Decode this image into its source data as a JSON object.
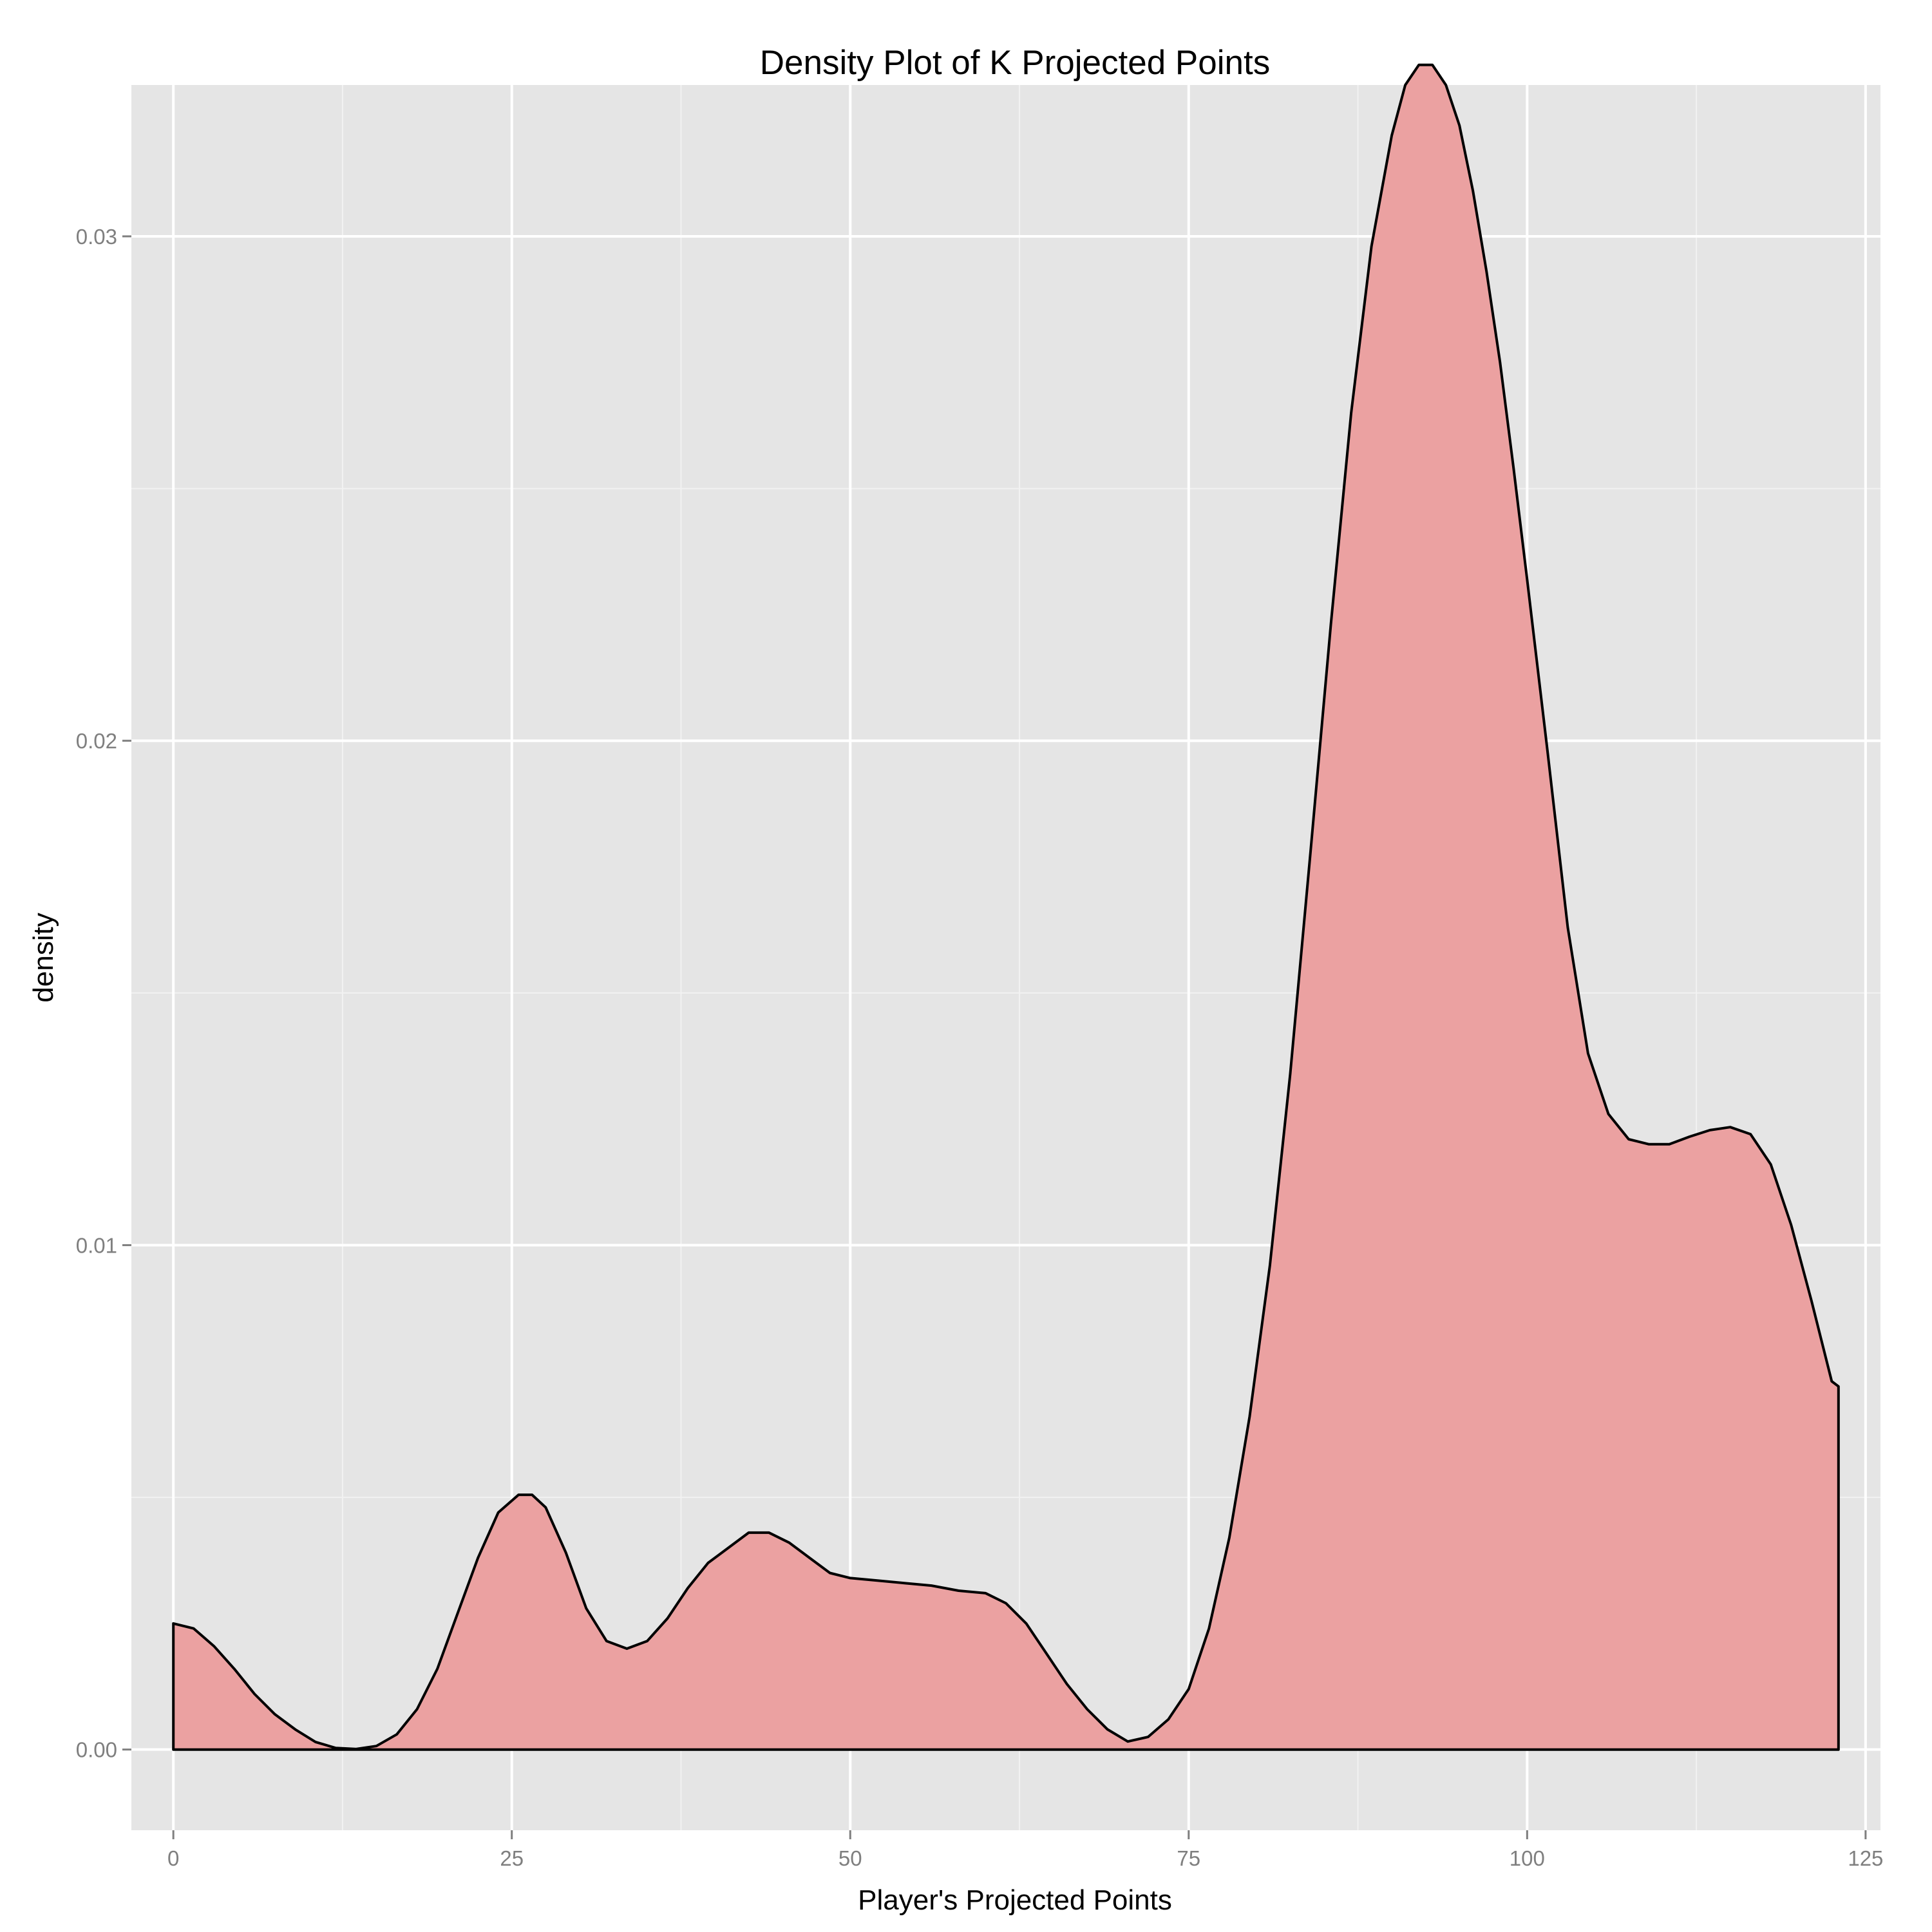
{
  "chart_data": {
    "type": "area",
    "title": "Density Plot of K Projected Points",
    "xlabel": "Player's Projected Points",
    "ylabel": "density",
    "xlim": [
      -3.1,
      126.1
    ],
    "ylim": [
      -0.0016,
      0.033
    ],
    "x_ticks": [
      0,
      25,
      50,
      75,
      100,
      125
    ],
    "x_tick_labels": [
      "0",
      "25",
      "50",
      "75",
      "100",
      "125"
    ],
    "y_ticks": [
      0,
      0.01,
      0.02,
      0.03
    ],
    "y_tick_labels": [
      "0.00",
      "0.01",
      "0.02",
      "0.03"
    ],
    "x_minor_ticks": [
      12.5,
      37.5,
      62.5,
      87.5,
      112.5
    ],
    "y_minor_ticks": [
      0.005,
      0.015,
      0.025
    ],
    "grid": true,
    "fill_color": "#eba1a1",
    "line_color": "#000000",
    "panel_color": "#e5e5e5",
    "series": [
      {
        "x": [
          0,
          1.5,
          3,
          4.5,
          6,
          7.5,
          9,
          10.5,
          12,
          13.5,
          15,
          16.5,
          18,
          19.5,
          21,
          22.5,
          24,
          25.5,
          26.5,
          27.5,
          29,
          30.5,
          32,
          33.5,
          35,
          36.5,
          38,
          39.5,
          41,
          42.5,
          44,
          45.5,
          47,
          48.5,
          50,
          52,
          54,
          56,
          58,
          60,
          61.5,
          63,
          64.5,
          66,
          67.5,
          69,
          70.5,
          72,
          73.5,
          75,
          76.5,
          78,
          79.5,
          81,
          82.5,
          84,
          85.5,
          87,
          88.5,
          90,
          91,
          92,
          93,
          94,
          95,
          96,
          97,
          98,
          99,
          100,
          101.5,
          103,
          104.5,
          106,
          107.5,
          109,
          110.5,
          112,
          113.5,
          115,
          116.5,
          118,
          119.5,
          121,
          122.5,
          123
        ],
        "y": [
          0.0025,
          0.0024,
          0.00205,
          0.0016,
          0.0011,
          0.0007,
          0.0004,
          0.00015,
          3e-05,
          1e-05,
          7e-05,
          0.0003,
          0.0008,
          0.0016,
          0.0027,
          0.0038,
          0.0047,
          0.00505,
          0.00505,
          0.0048,
          0.0039,
          0.0028,
          0.00215,
          0.002,
          0.00215,
          0.0026,
          0.0032,
          0.0037,
          0.004,
          0.0043,
          0.0043,
          0.0041,
          0.0038,
          0.0035,
          0.0034,
          0.00335,
          0.0033,
          0.00325,
          0.00315,
          0.0031,
          0.0029,
          0.0025,
          0.0019,
          0.0013,
          0.0008,
          0.0004,
          0.00016,
          0.00025,
          0.0006,
          0.0012,
          0.0024,
          0.0042,
          0.0066,
          0.0096,
          0.0134,
          0.0178,
          0.0223,
          0.0265,
          0.0298,
          0.032,
          0.033,
          0.0334,
          0.0334,
          0.033,
          0.0322,
          0.0309,
          0.0293,
          0.0275,
          0.0254,
          0.0232,
          0.0198,
          0.0163,
          0.0138,
          0.0126,
          0.0121,
          0.012,
          0.012,
          0.01215,
          0.01228,
          0.01234,
          0.0122,
          0.0116,
          0.0104,
          0.0089,
          0.0073,
          0.0072
        ]
      }
    ]
  }
}
